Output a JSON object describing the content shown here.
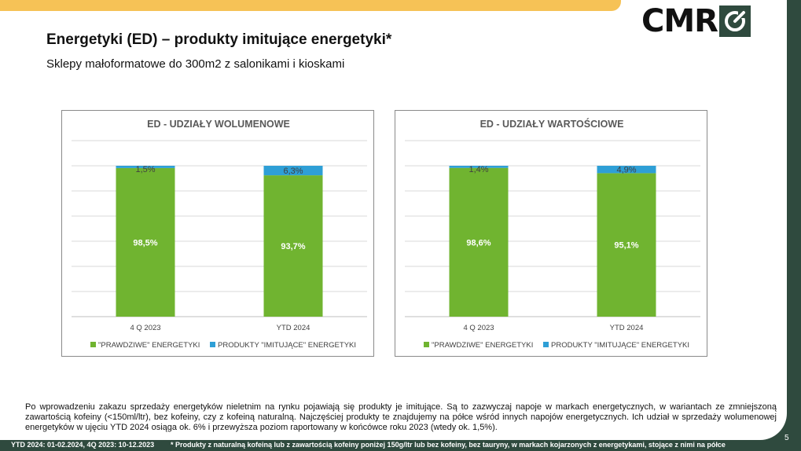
{
  "header": {
    "title": "Energetyki (ED) – produkty imitujące energetyki*",
    "subtitle": "Sklepy małoformatowe do 300m2 z salonikami i kioskami",
    "logo_text": "CMR"
  },
  "colors": {
    "real": "#70b430",
    "imitation": "#2e9fd6",
    "grid": "#d9d9d9",
    "frame": "#2f4a3e",
    "top_band": "#f6c256"
  },
  "chart_data": [
    {
      "type": "bar",
      "stacked": true,
      "title": "ED - UDZIAŁY WOLUMENOWE",
      "categories": [
        "4 Q 2023",
        "YTD 2024"
      ],
      "series": [
        {
          "name": "\"PRAWDZIWE\" ENERGETYKI",
          "values": [
            98.5,
            93.7
          ],
          "labels": [
            "98,5%",
            "93,7%"
          ]
        },
        {
          "name": "PRODUKTY \"IMITUJĄCE\" ENERGETYKI",
          "values": [
            1.5,
            6.3
          ],
          "labels": [
            "1,5%",
            "6,3%"
          ]
        }
      ],
      "ylim": [
        0,
        100
      ],
      "legend": "bottom"
    },
    {
      "type": "bar",
      "stacked": true,
      "title": "ED - UDZIAŁY WARTOŚCIOWE",
      "categories": [
        "4 Q 2023",
        "YTD 2024"
      ],
      "series": [
        {
          "name": "\"PRAWDZIWE\" ENERGETYKI",
          "values": [
            98.6,
            95.1
          ],
          "labels": [
            "98,6%",
            "95,1%"
          ]
        },
        {
          "name": "PRODUKTY \"IMITUJĄCE\" ENERGETYKI",
          "values": [
            1.4,
            4.9
          ],
          "labels": [
            "1,4%",
            "4,9%"
          ]
        }
      ],
      "ylim": [
        0,
        100
      ],
      "legend": "bottom"
    }
  ],
  "body": {
    "paragraph": "Po wprowadzeniu zakazu sprzedaży energetyków nieletnim na rynku pojawiają się produkty je imitujące. Są to zazwyczaj napoje w markach energetycznych, w wariantach ze zmniejszoną zawartością kofeiny (<150ml/ltr), bez kofeiny, czy z kofeiną naturalną. Najczęściej produkty te znajdujemy na półce wśród innych napojów energetycznych. Ich udział w sprzedaży wolumenowej energetyków w ujęciu YTD 2024 osiąga ok. 6% i przewyższa poziom raportowany w końcówce roku 2023 (wtedy ok. 1,5%)."
  },
  "footer": {
    "periods": "YTD 2024: 01-02.2024, 4Q 2023: 10-12.2023",
    "note": "* Produkty z naturalną kofeiną lub z zawartością kofeiny poniżej 150g/ltr lub bez kofeiny, bez tauryny, w markach kojarzonych z energetykami, stojące z nimi na półce",
    "page_number": "5"
  }
}
